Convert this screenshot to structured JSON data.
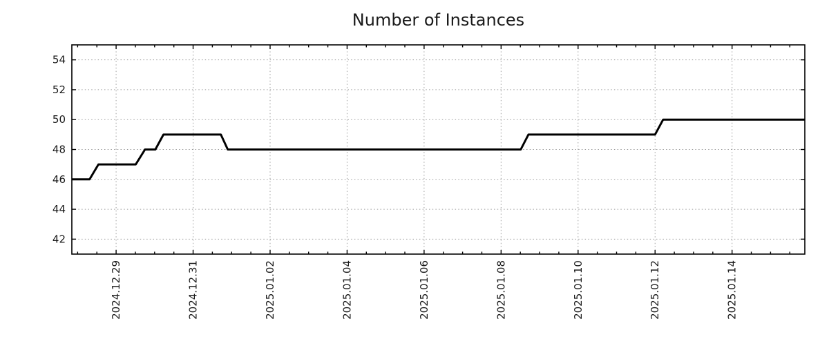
{
  "chart_data": {
    "type": "line",
    "title": "Number of Instances",
    "legend": null,
    "x_axis": {
      "label": "",
      "tick_labels": [
        "2024.12.29",
        "2024.12.31",
        "2025.01.02",
        "2025.01.04",
        "2025.01.06",
        "2025.01.08",
        "2025.01.10",
        "2025.01.12",
        "2025.01.14"
      ],
      "tick_offsets_days": [
        0,
        2,
        4,
        6,
        8,
        10,
        12,
        14,
        16
      ],
      "minor_tick_interval_days": 0.5,
      "range_days": [
        -1.15,
        17.89
      ],
      "epoch": "2024-12-29 00:00",
      "tick_label_rotation_deg": 90
    },
    "y_axis": {
      "label": "",
      "tick_labels": [
        "42",
        "44",
        "46",
        "48",
        "50",
        "52",
        "54"
      ],
      "tick_values": [
        42,
        44,
        46,
        48,
        50,
        52,
        54
      ],
      "range": [
        41,
        55
      ]
    },
    "grid": {
      "show": true,
      "style": "dotted",
      "color": "#9c9c9c"
    },
    "series": [
      {
        "name": "Number of Instances",
        "color": "#000000",
        "line_width": 3,
        "points": [
          {
            "time": "2024-12-27 20:25",
            "days": -1.15,
            "value": 46
          },
          {
            "time": "2024-12-28 07:30",
            "days": -0.69,
            "value": 46
          },
          {
            "time": "2024-12-28 13:00",
            "days": -0.46,
            "value": 47
          },
          {
            "time": "2024-12-29 12:15",
            "days": 0.51,
            "value": 47
          },
          {
            "time": "2024-12-29 18:00",
            "days": 0.75,
            "value": 48
          },
          {
            "time": "2024-12-30 00:30",
            "days": 1.02,
            "value": 48
          },
          {
            "time": "2024-12-30 05:30",
            "days": 1.23,
            "value": 49
          },
          {
            "time": "2024-12-31 17:15",
            "days": 2.72,
            "value": 49
          },
          {
            "time": "2024-12-31 21:35",
            "days": 2.9,
            "value": 48
          },
          {
            "time": "2025-01-08 12:15",
            "days": 10.51,
            "value": 48
          },
          {
            "time": "2025-01-08 17:00",
            "days": 10.71,
            "value": 49
          },
          {
            "time": "2025-01-12 00:00",
            "days": 14.0,
            "value": 49
          },
          {
            "time": "2025-01-12 05:00",
            "days": 14.21,
            "value": 50
          },
          {
            "time": "2025-01-15 21:20",
            "days": 17.89,
            "value": 50
          }
        ]
      }
    ]
  },
  "colors": {
    "background": "#ffffff",
    "axis": "#000000",
    "grid": "#9c9c9c",
    "text": "#1a1a1a",
    "series": "#000000"
  }
}
